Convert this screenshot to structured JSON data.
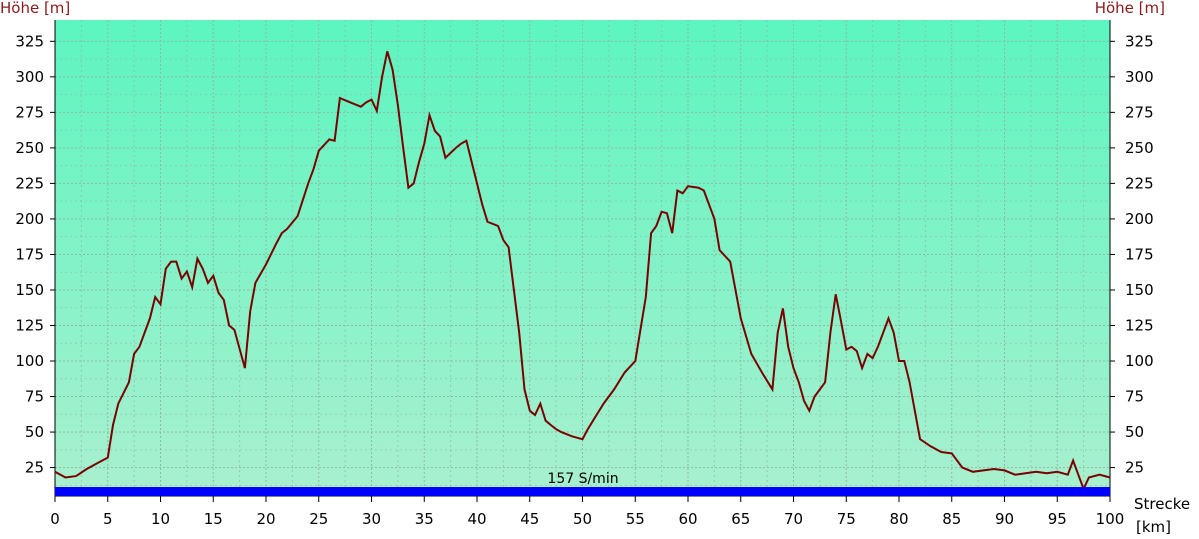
{
  "chart_data": {
    "type": "area",
    "ylabel": "Höhe [m]",
    "xlabel_line1": "Strecke",
    "xlabel_line2": "[km]",
    "annotation": "157 S/min",
    "xlim": [
      0,
      100
    ],
    "ylim": [
      5,
      340
    ],
    "x_ticks": [
      0,
      5,
      10,
      15,
      20,
      25,
      30,
      35,
      40,
      45,
      50,
      55,
      60,
      65,
      70,
      75,
      80,
      85,
      90,
      95,
      100
    ],
    "y_ticks": [
      25,
      50,
      75,
      100,
      125,
      150,
      175,
      200,
      225,
      250,
      275,
      300,
      325
    ],
    "grid": true,
    "colors": {
      "fill_top": "#5cf5c0",
      "fill_bottom": "#a9f0cf",
      "line": "#7a0000",
      "bar": "#0000ff",
      "grid": "#8fb8a8",
      "ylabel": "#8b1a1a"
    },
    "series": [
      {
        "x": [
          0,
          1,
          2,
          3,
          4,
          5,
          5.5,
          6,
          7,
          7.5,
          8,
          9,
          9.5,
          10,
          10.5,
          11,
          11.5,
          12,
          12.5,
          13,
          13.5,
          14,
          14.5,
          15,
          15.5,
          16,
          16.5,
          17,
          18,
          18.5,
          19,
          20,
          21,
          21.5,
          22,
          23,
          24,
          24.5,
          25,
          26,
          26.5,
          27,
          28,
          29,
          29.5,
          30,
          30.5,
          31,
          31.5,
          32,
          32.5,
          33,
          33.5,
          34,
          34.5,
          35,
          35.5,
          36,
          36.5,
          37,
          38,
          38.5,
          39,
          40,
          40.5,
          41,
          42,
          42.5,
          43,
          44,
          44.5,
          45,
          45.5,
          46,
          46.5,
          47,
          47.5,
          48,
          49,
          50,
          50.5,
          51,
          52,
          53,
          54,
          55,
          56,
          56.5,
          57,
          57.5,
          58,
          58.5,
          59,
          59.5,
          60,
          61,
          61.5,
          62,
          62.5,
          63,
          64,
          65,
          66,
          67,
          68,
          68.5,
          69,
          69.5,
          70,
          70.5,
          71,
          71.5,
          72,
          72.5,
          73,
          73.5,
          74,
          74.5,
          75,
          75.5,
          76,
          76.5,
          77,
          77.5,
          78,
          78.5,
          79,
          79.5,
          80,
          80.5,
          81,
          81.5,
          82,
          83,
          84,
          85,
          86,
          87,
          88,
          89,
          90,
          91,
          92,
          93,
          94,
          95,
          96,
          96.5,
          97,
          97.5,
          98,
          99,
          100
        ],
        "y": [
          22,
          18,
          19,
          24,
          28,
          32,
          55,
          70,
          85,
          105,
          110,
          130,
          145,
          140,
          165,
          170,
          170,
          158,
          163,
          152,
          172,
          165,
          155,
          160,
          148,
          143,
          125,
          122,
          95,
          135,
          155,
          168,
          183,
          190,
          193,
          202,
          225,
          235,
          248,
          256,
          255,
          285,
          282,
          279,
          282,
          284,
          276,
          300,
          318,
          305,
          280,
          250,
          222,
          225,
          240,
          253,
          273,
          262,
          258,
          243,
          250,
          253,
          255,
          225,
          210,
          198,
          195,
          185,
          180,
          120,
          80,
          65,
          62,
          70,
          58,
          55,
          52,
          50,
          47,
          45,
          52,
          58,
          70,
          80,
          92,
          100,
          145,
          190,
          195,
          205,
          204,
          190,
          220,
          218,
          223,
          222,
          220,
          210,
          200,
          178,
          170,
          130,
          105,
          92,
          80,
          120,
          137,
          110,
          95,
          85,
          72,
          65,
          75,
          80,
          85,
          120,
          147,
          128,
          108,
          110,
          107,
          95,
          105,
          102,
          110,
          120,
          130,
          120,
          100,
          100,
          85,
          65,
          45,
          40,
          36,
          35,
          25,
          22,
          23,
          24,
          23,
          20,
          21,
          22,
          21,
          22,
          20,
          30,
          20,
          10,
          18,
          20,
          18
        ]
      }
    ]
  }
}
